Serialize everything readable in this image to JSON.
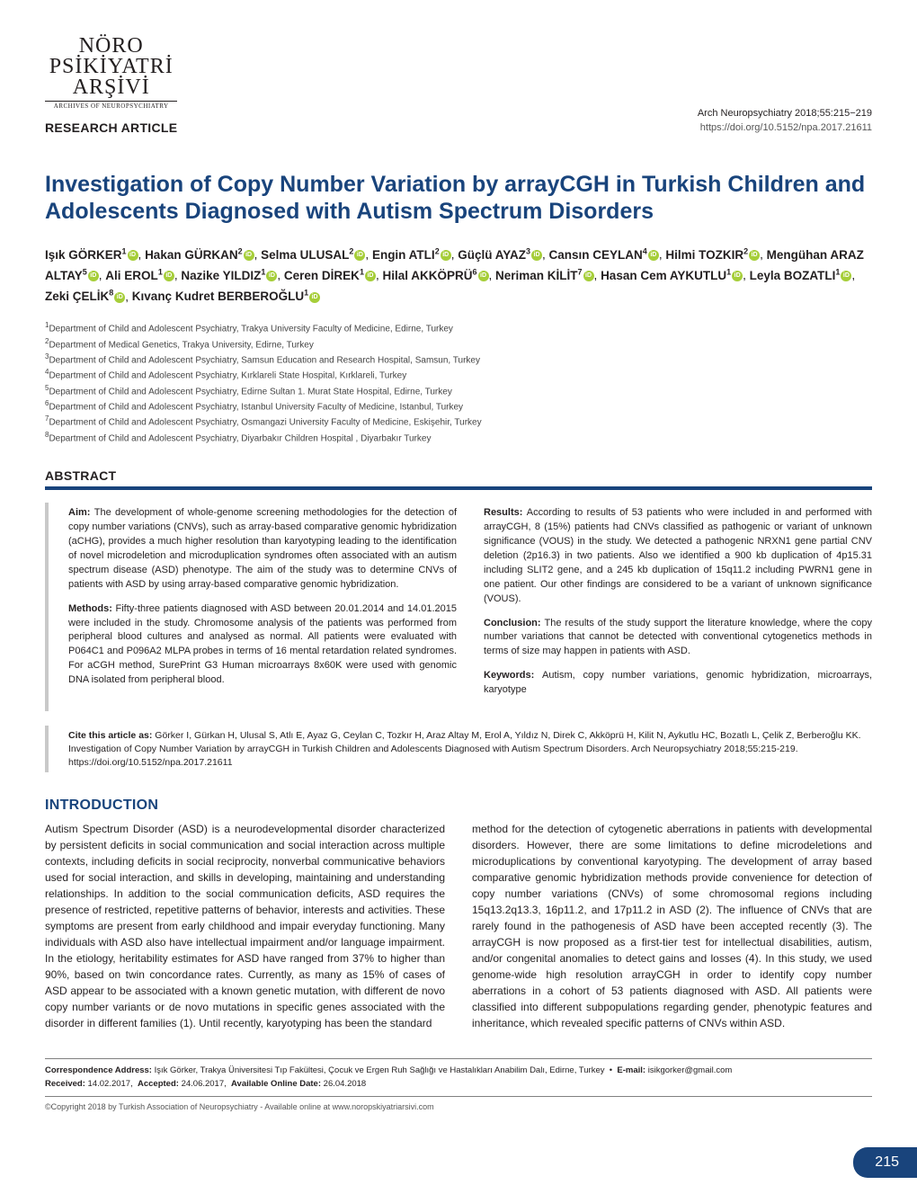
{
  "colors": {
    "brand_blue": "#19447c",
    "orcid_green": "#a6ce39",
    "rule_gray": "#c9c9c9"
  },
  "logo": {
    "line1": "NÖRO",
    "line2": "PSİKİYATRİ",
    "line3": "ARŞİVİ",
    "sub": "ARCHIVES OF NEUROPSYCHIATRY"
  },
  "article_type": "RESEARCH ARTICLE",
  "journal_meta": {
    "citation": "Arch Neuropsychiatry 2018;55:215−219",
    "doi": "https://doi.org/10.5152/npa.2017.21611"
  },
  "title": "Investigation of Copy Number Variation by arrayCGH in Turkish Children and Adolescents Diagnosed with Autism Spectrum Disorders",
  "authors_html": "Işık GÖRKER<sup>1</sup>{O}, Hakan GÜRKAN<sup>2</sup>{O}, Selma ULUSAL<sup>2</sup>{O}, Engin ATLI<sup>2</sup>{O}, Güçlü AYAZ<sup>3</sup>{O}, Cansın CEYLAN<sup>4</sup>{O}, Hilmi TOZKIR<sup>2</sup>{O}, Mengühan ARAZ ALTAY<sup>5</sup>{O}, Ali EROL<sup>1</sup>{O}, Nazike YILDIZ<sup>1</sup>{O}, Ceren DİREK<sup>1</sup>{O}, Hilal AKKÖPRÜ<sup>6</sup>{O}, Neriman KİLİT<sup>7</sup>{O}, Hasan Cem AYKUTLU<sup>1</sup>{O}, Leyla BOZATLI<sup>1</sup>{O}, Zeki ÇELİK<sup>8</sup>{O}, Kıvanç Kudret BERBEROĞLU<sup>1</sup>{O}",
  "affiliations": [
    "Department of Child and Adolescent Psychiatry, Trakya University Faculty of Medicine, Edirne, Turkey",
    "Department of Medical Genetics, Trakya University, Edirne, Turkey",
    "Department of Child and Adolescent Psychiatry, Samsun Education and Research Hospital, Samsun, Turkey",
    "Department of Child and Adolescent Psychiatry, Kırklareli State Hospital, Kırklareli, Turkey",
    "Department of Child and Adolescent Psychiatry, Edirne Sultan 1. Murat State Hospital, Edirne, Turkey",
    "Department of Child and Adolescent Psychiatry, Istanbul University Faculty of Medicine, Istanbul, Turkey",
    "Department of Child and Adolescent Psychiatry, Osmangazi University Faculty of Medicine, Eskişehir, Turkey",
    "Department of Child and Adolescent Psychiatry, Diyarbakır Children Hospital , Diyarbakır Turkey"
  ],
  "abstract_label": "ABSTRACT",
  "abstract": {
    "left": [
      {
        "label": "Aim:",
        "text": "The development of whole-genome screening methodologies for the detection of copy number variations (CNVs), such as array-based comparative genomic hybridization (aCHG), provides a much higher resolution than karyotyping leading to the identification of novel microdeletion and microduplication syndromes often associated with an autism spectrum disease (ASD) phenotype. The aim of the study was to determine CNVs of patients with ASD by using array-based comparative genomic hybridization."
      },
      {
        "label": "Methods:",
        "text": "Fifty-three patients diagnosed with ASD between 20.01.2014 and 14.01.2015 were included in the study. Chromosome analysis of the patients was performed from peripheral blood cultures and analysed as normal. All patients were evaluated with P064C1 and P096A2 MLPA probes in terms of 16 mental retardation related syndromes. For aCGH method, SurePrint G3 Human microarrays 8x60K were used with genomic DNA isolated from peripheral blood."
      }
    ],
    "right": [
      {
        "label": "Results:",
        "text": "According to results of 53 patients who were included in and performed with arrayCGH, 8 (15%) patients had CNVs classified as pathogenic or variant of unknown significance (VOUS) in the study. We detected a pathogenic NRXN1 gene partial CNV deletion (2p16.3) in two patients. Also we identified a 900 kb duplication of 4p15.31 including SLIT2 gene, and a 245 kb duplication of 15q11.2 including PWRN1 gene in one patient. Our other findings are considered to be a variant of unknown significance (VOUS)."
      },
      {
        "label": "Conclusion:",
        "text": "The results of the study support the literature knowledge, where the copy number variations that cannot be detected with conventional cytogenetics methods in terms of size may happen in patients with ASD."
      },
      {
        "label": "Keywords:",
        "text": "Autism, copy number variations, genomic hybridization, microarrays, karyotype"
      }
    ]
  },
  "cite_label": "Cite this article as:",
  "cite_text": "Görker I, Gürkan H, Ulusal S, Atlı E, Ayaz G, Ceylan C, Tozkır H, Araz Altay M, Erol A, Yıldız N, Direk C, Akköprü H, Kilit N, Aykutlu HC, Bozatlı L, Çelik Z, Berberoğlu KK. Investigation of Copy Number Variation by arrayCGH in Turkish Children and Adolescents Diagnosed with Autism Spectrum Disorders. Arch Neuropsychiatry 2018;55:215-219. https://doi.org/10.5152/npa.2017.21611",
  "intro_label": "INTRODUCTION",
  "intro": {
    "left": "Autism Spectrum Disorder (ASD) is a neurodevelopmental disorder characterized by persistent deficits in social communication and social interaction across multiple contexts, including deficits in social reciprocity, nonverbal communicative behaviors used for social interaction, and skills in developing, maintaining and understanding relationships. In addition to the social communication deficits, ASD requires the presence of restricted, repetitive patterns of behavior, interests and activities. These symptoms are present from early childhood and impair everyday functioning. Many individuals with ASD also have intellectual impairment and/or language impairment. In the etiology, heritability estimates for ASD have ranged from 37% to higher than 90%, based on twin concordance rates. Currently, as many as 15% of cases of ASD appear to be associated with a known genetic mutation, with different de novo copy number variants or de novo mutations in specific genes associated with the disorder in different families (1). Until recently, karyotyping has been the standard",
    "right": "method for the detection of cytogenetic aberrations in patients with developmental disorders. However, there are some limitations to define microdeletions and microduplications by conventional karyotyping. The development of array based comparative genomic hybridization methods provide convenience for detection of copy number variations (CNVs) of some chromosomal regions including 15q13.2q13.3, 16p11.2, and 17p11.2 in ASD (2). The influence of CNVs that are rarely found in the pathogenesis of ASD have been accepted recently (3). The arrayCGH is now proposed as a first-tier test for intellectual disabilities, autism, and/or congenital anomalies to detect gains and losses (4). In this study, we used genome-wide high resolution arrayCGH in order to identify copy number aberrations in a cohort of 53 patients diagnosed with ASD. All patients were classified into different subpopulations regarding gender, phenotypic features and inheritance, which revealed specific patterns of CNVs within ASD."
  },
  "correspondence": {
    "addr_label": "Correspondence Address:",
    "addr": "Işık Görker, Trakya Üniversitesi Tıp Fakültesi, Çocuk ve Ergen Ruh Sağlığı ve Hastalıkları Anabilim Dalı, Edirne, Turkey",
    "email_label": "E-mail:",
    "email": "isikgorker@gmail.com",
    "received_label": "Received:",
    "received": "14.02.2017,",
    "accepted_label": "Accepted:",
    "accepted": "24.06.2017,",
    "online_label": "Available Online Date:",
    "online": "26.04.2018"
  },
  "copyright": "©Copyright 2018 by Turkish Association of Neuropsychiatry - Available online at www.noropskiyatriarsivi.com",
  "page_number": "215"
}
